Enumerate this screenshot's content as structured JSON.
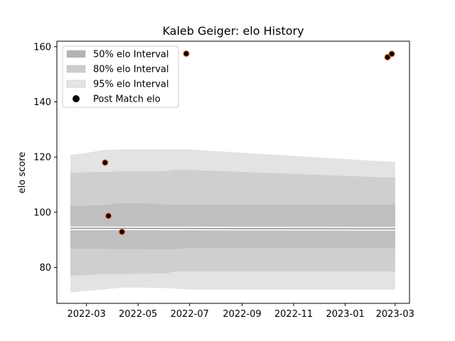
{
  "chart_data": {
    "type": "scatter",
    "title": "Kaleb Geiger: elo History",
    "xlabel": "",
    "ylabel": "elo score",
    "x_axis_type": "date",
    "xlim": [
      "2022-01-25",
      "2023-03-18"
    ],
    "ylim": [
      67,
      162
    ],
    "x_ticks": [
      "2022-03-01",
      "2022-05-01",
      "2022-07-01",
      "2022-09-01",
      "2022-11-01",
      "2023-01-01",
      "2023-03-01"
    ],
    "x_tick_labels": [
      "2022-03",
      "2022-05",
      "2022-07",
      "2022-09",
      "2022-11",
      "2023-01",
      "2023-03"
    ],
    "y_ticks": [
      80,
      100,
      120,
      140,
      160
    ],
    "grid": false,
    "legend_position": "upper-left",
    "legend": [
      {
        "label": "50% elo Interval",
        "kind": "band",
        "color": "#b3b3b3"
      },
      {
        "label": "80% elo Interval",
        "kind": "band",
        "color": "#cccccc"
      },
      {
        "label": "95% elo Interval",
        "kind": "band",
        "color": "#e5e5e5"
      },
      {
        "label": "Post Match elo",
        "kind": "marker",
        "color": "#000000"
      }
    ],
    "bands": [
      {
        "name": "95% elo Interval",
        "color": "#e3e3e3",
        "x": [
          "2022-02-10",
          "2022-03-01",
          "2022-03-20",
          "2022-04-15",
          "2022-06-05",
          "2022-06-28",
          "2023-03-01"
        ],
        "upper": [
          120.8,
          121.5,
          122.5,
          122.8,
          122.8,
          122.8,
          118.2
        ],
        "lower": [
          71.0,
          71.5,
          72.0,
          72.8,
          72.5,
          72.0,
          72.0
        ]
      },
      {
        "name": "80% elo Interval",
        "color": "#cfcfcf",
        "x": [
          "2022-02-10",
          "2022-03-01",
          "2022-03-20",
          "2022-04-15",
          "2022-06-05",
          "2022-06-10",
          "2022-06-28",
          "2023-03-01"
        ],
        "upper": [
          114.3,
          114.5,
          114.6,
          114.8,
          114.9,
          115.4,
          115.4,
          112.5
        ],
        "lower": [
          77.0,
          77.2,
          77.6,
          77.7,
          77.8,
          78.5,
          78.5,
          78.5
        ]
      },
      {
        "name": "50% elo Interval",
        "color": "#bfbfbf",
        "x": [
          "2022-02-10",
          "2022-03-01",
          "2022-03-20",
          "2022-04-10",
          "2022-05-01",
          "2022-06-05",
          "2022-06-28",
          "2023-03-01"
        ],
        "upper": [
          102.3,
          102.4,
          102.6,
          103.3,
          103.3,
          102.8,
          102.8,
          102.8
        ],
        "lower": [
          86.8,
          86.8,
          86.8,
          86.7,
          86.7,
          86.5,
          87.0,
          87.0
        ]
      }
    ],
    "median_line": {
      "x": [
        "2022-02-10",
        "2023-03-01"
      ],
      "y": [
        94.2,
        94.0
      ]
    },
    "points": [
      {
        "x": "2022-03-23",
        "y": 118.0
      },
      {
        "x": "2022-03-27",
        "y": 98.7
      },
      {
        "x": "2022-04-12",
        "y": 92.9
      },
      {
        "x": "2022-06-27",
        "y": 157.5
      },
      {
        "x": "2023-02-20",
        "y": 156.2
      },
      {
        "x": "2023-02-25",
        "y": 157.4
      }
    ],
    "marker_fill": "#000000",
    "marker_edge": "#e0703a"
  }
}
